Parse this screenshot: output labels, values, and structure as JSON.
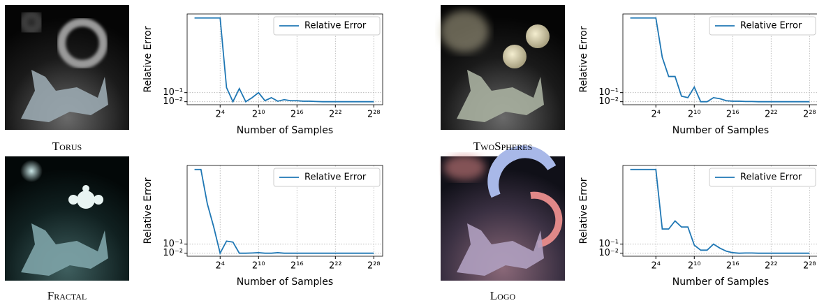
{
  "captions": [
    "Torus",
    "TwoSpheres",
    "Fractal",
    "Logo"
  ],
  "chart_data": [
    {
      "type": "line",
      "xlabel": "Number of Samples",
      "ylabel": "Relative Error",
      "xscale": "log2",
      "grid": true,
      "legend": "upper right",
      "x": [
        1,
        2,
        4,
        8,
        16,
        32,
        64,
        128,
        256,
        512,
        1024,
        2048,
        4096,
        8192,
        16384,
        32768,
        65536,
        131072,
        262144,
        524288,
        1048576,
        2097152,
        4194304,
        8388608,
        16777216,
        33554432,
        67108864,
        134217728,
        268435456
      ],
      "series": [
        {
          "name": "Relative Error",
          "color": "#1f77b4",
          "values": [
            0.84,
            0.84,
            0.84,
            0.84,
            0.84,
            0.15,
            0.01,
            0.14,
            0.01,
            0.05,
            0.1,
            0.02,
            0.05,
            0.015,
            0.03,
            0.02,
            0.02,
            0.015,
            0.015,
            0.012,
            0.01,
            0.01,
            0.01,
            0.01,
            0.01,
            0.01,
            0.01,
            0.01,
            0.01
          ]
        }
      ],
      "xlim": [
        0.45,
        700000000
      ],
      "ylim": [
        -0.02,
        0.88
      ],
      "xticks": [
        {
          "value": 16,
          "label": "2⁴"
        },
        {
          "value": 1024,
          "label": "2¹⁰"
        },
        {
          "value": 65536,
          "label": "2¹⁶"
        },
        {
          "value": 4194304,
          "label": "2²²"
        },
        {
          "value": 268435456,
          "label": "2²⁸"
        }
      ],
      "yticks": [
        {
          "value": 0.1,
          "label": "10⁻¹"
        },
        {
          "value": 0.01,
          "label": "10⁻²"
        }
      ]
    },
    {
      "type": "line",
      "xlabel": "Number of Samples",
      "ylabel": "Relative Error",
      "xscale": "log2",
      "grid": true,
      "legend": "upper right",
      "x": [
        1,
        2,
        4,
        8,
        16,
        32,
        64,
        128,
        256,
        512,
        1024,
        2048,
        4096,
        8192,
        16384,
        32768,
        65536,
        131072,
        262144,
        524288,
        1048576,
        2097152,
        4194304,
        8388608,
        16777216,
        33554432,
        67108864,
        134217728,
        268435456
      ],
      "series": [
        {
          "name": "Relative Error",
          "color": "#1f77b4",
          "values": [
            0.84,
            0.84,
            0.84,
            0.84,
            0.84,
            0.45,
            0.26,
            0.26,
            0.065,
            0.05,
            0.155,
            0.01,
            0.01,
            0.05,
            0.04,
            0.02,
            0.015,
            0.015,
            0.012,
            0.012,
            0.01,
            0.01,
            0.01,
            0.01,
            0.01,
            0.01,
            0.01,
            0.01,
            0.01
          ]
        }
      ],
      "xlim": [
        0.45,
        700000000
      ],
      "ylim": [
        -0.02,
        0.88
      ],
      "xticks": [
        {
          "value": 16,
          "label": "2⁴"
        },
        {
          "value": 1024,
          "label": "2¹⁰"
        },
        {
          "value": 65536,
          "label": "2¹⁶"
        },
        {
          "value": 4194304,
          "label": "2²²"
        },
        {
          "value": 268435456,
          "label": "2²⁸"
        }
      ],
      "yticks": [
        {
          "value": 0.1,
          "label": "10⁻¹"
        },
        {
          "value": 0.01,
          "label": "10⁻²"
        }
      ]
    },
    {
      "type": "line",
      "xlabel": "Number of Samples",
      "ylabel": "Relative Error",
      "xscale": "log2",
      "grid": true,
      "legend": "upper right",
      "x": [
        1,
        2,
        4,
        8,
        16,
        32,
        64,
        128,
        256,
        512,
        1024,
        2048,
        4096,
        8192,
        16384,
        32768,
        65536,
        131072,
        262144,
        524288,
        1048576,
        2097152,
        4194304,
        8388608,
        16777216,
        33554432,
        67108864,
        134217728,
        268435456
      ],
      "series": [
        {
          "name": "Relative Error",
          "color": "#1f77b4",
          "values": [
            0.84,
            0.84,
            0.5,
            0.27,
            0.01,
            0.13,
            0.12,
            0.01,
            0.01,
            0.012,
            0.015,
            0.01,
            0.01,
            0.015,
            0.01,
            0.01,
            0.01,
            0.01,
            0.01,
            0.01,
            0.01,
            0.01,
            0.01,
            0.01,
            0.01,
            0.01,
            0.01,
            0.01,
            0.01
          ]
        }
      ],
      "xlim": [
        0.45,
        700000000
      ],
      "ylim": [
        -0.02,
        0.88
      ],
      "xticks": [
        {
          "value": 16,
          "label": "2⁴"
        },
        {
          "value": 1024,
          "label": "2¹⁰"
        },
        {
          "value": 65536,
          "label": "2¹⁶"
        },
        {
          "value": 4194304,
          "label": "2²²"
        },
        {
          "value": 268435456,
          "label": "2²⁸"
        }
      ],
      "yticks": [
        {
          "value": 0.1,
          "label": "10⁻¹"
        },
        {
          "value": 0.01,
          "label": "10⁻²"
        }
      ]
    },
    {
      "type": "line",
      "xlabel": "Number of Samples",
      "ylabel": "Relative Error",
      "xscale": "log2",
      "grid": true,
      "legend": "upper right",
      "x": [
        1,
        2,
        4,
        8,
        16,
        32,
        64,
        128,
        256,
        512,
        1024,
        2048,
        4096,
        8192,
        16384,
        32768,
        65536,
        131072,
        262144,
        524288,
        1048576,
        2097152,
        4194304,
        8388608,
        16777216,
        33554432,
        67108864,
        134217728,
        268435456
      ],
      "series": [
        {
          "name": "Relative Error",
          "color": "#1f77b4",
          "values": [
            0.84,
            0.84,
            0.84,
            0.84,
            0.84,
            0.25,
            0.25,
            0.33,
            0.27,
            0.27,
            0.09,
            0.04,
            0.04,
            0.1,
            0.06,
            0.03,
            0.015,
            0.01,
            0.012,
            0.012,
            0.01,
            0.01,
            0.01,
            0.01,
            0.01,
            0.01,
            0.01,
            0.01,
            0.01
          ]
        }
      ],
      "xlim": [
        0.45,
        700000000
      ],
      "ylim": [
        -0.02,
        0.88
      ],
      "xticks": [
        {
          "value": 16,
          "label": "2⁴"
        },
        {
          "value": 1024,
          "label": "2¹⁰"
        },
        {
          "value": 65536,
          "label": "2¹⁶"
        },
        {
          "value": 4194304,
          "label": "2²²"
        },
        {
          "value": 268435456,
          "label": "2²⁸"
        }
      ],
      "yticks": [
        {
          "value": 0.1,
          "label": "10⁻¹"
        },
        {
          "value": 0.01,
          "label": "10⁻²"
        }
      ]
    }
  ]
}
